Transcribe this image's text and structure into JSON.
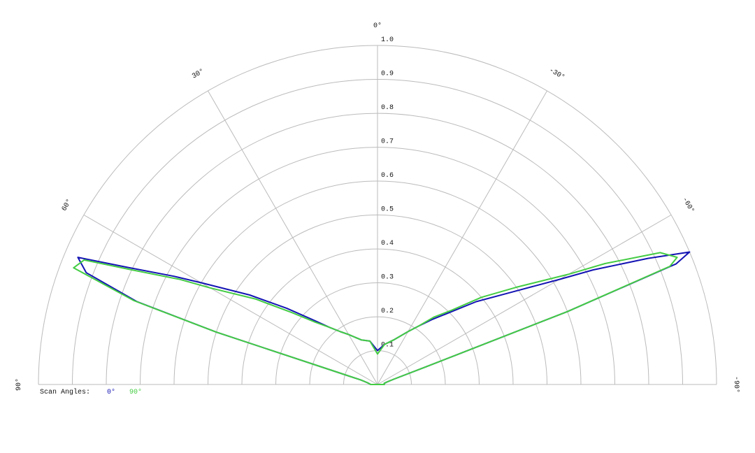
{
  "chart_data": {
    "type": "polar",
    "theta": [
      -90,
      -80,
      -75,
      -72,
      -70,
      -69,
      -68,
      -67,
      -65,
      -62,
      -60,
      -55,
      -50,
      -45,
      -40,
      -35,
      -30,
      -20,
      -10,
      0,
      10,
      20,
      30,
      35,
      40,
      45,
      50,
      55,
      60,
      62,
      65,
      67,
      69,
      71,
      72,
      73,
      75,
      80,
      90
    ],
    "series": [
      {
        "name": "0°",
        "color": "#1414b4",
        "values": [
          0.02,
          0.02,
          0.03,
          0.05,
          0.15,
          0.6,
          0.95,
          1.0,
          0.88,
          0.72,
          0.62,
          0.47,
          0.38,
          0.3,
          0.25,
          0.21,
          0.18,
          0.14,
          0.12,
          0.1,
          0.13,
          0.14,
          0.17,
          0.19,
          0.22,
          0.27,
          0.35,
          0.46,
          0.6,
          0.68,
          0.82,
          0.96,
          0.92,
          0.75,
          0.5,
          0.12,
          0.05,
          0.03,
          0.02
        ]
      },
      {
        "name": "90°",
        "color": "#44cc44",
        "values": [
          0.02,
          0.02,
          0.03,
          0.05,
          0.15,
          0.6,
          0.93,
          0.96,
          0.92,
          0.76,
          0.65,
          0.5,
          0.4,
          0.31,
          0.26,
          0.21,
          0.18,
          0.14,
          0.12,
          0.09,
          0.13,
          0.14,
          0.17,
          0.19,
          0.22,
          0.26,
          0.33,
          0.44,
          0.57,
          0.66,
          0.8,
          0.94,
          0.96,
          0.76,
          0.5,
          0.12,
          0.05,
          0.03,
          0.02
        ]
      }
    ],
    "rlim": [
      0,
      1.0
    ],
    "rticks": [
      0.1,
      0.2,
      0.3,
      0.4,
      0.5,
      0.6,
      0.7,
      0.8,
      0.9,
      {
        "value": 1,
        "label": "1.0"
      }
    ],
    "thetaticks": [
      {
        "value": 90,
        "label": "90°"
      },
      {
        "value": 60,
        "label": "60°"
      },
      {
        "value": 30,
        "label": "30°"
      },
      {
        "value": 0,
        "label": "0°"
      },
      {
        "value": -30,
        "label": "-30°"
      },
      {
        "value": -60,
        "label": "-60°"
      },
      {
        "value": -90,
        "label": "-90°"
      }
    ],
    "legend_title": "Scan Angles:",
    "grid": true
  }
}
